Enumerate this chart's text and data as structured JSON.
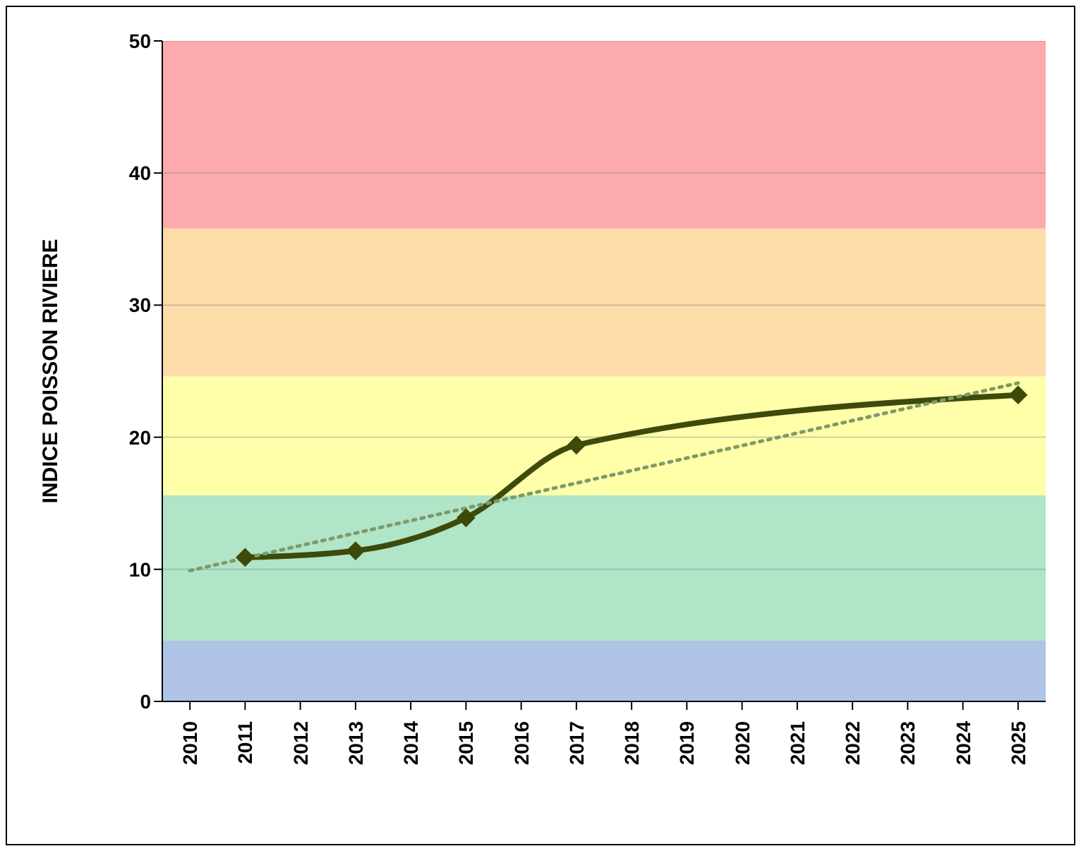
{
  "chart_data": {
    "type": "line",
    "ylabel": "INDICE POISSON RIVIERE",
    "categories": [
      "2010",
      "2011",
      "2012",
      "2013",
      "2014",
      "2015",
      "2016",
      "2017",
      "2018",
      "2019",
      "2020",
      "2021",
      "2022",
      "2023",
      "2024",
      "2025"
    ],
    "series": [
      {
        "values": [
          null,
          10.9,
          null,
          11.4,
          null,
          13.9,
          null,
          19.4,
          null,
          null,
          null,
          null,
          null,
          null,
          null,
          23.2
        ],
        "color": "#3d4a0a"
      },
      {
        "type": "line",
        "values": [
          9.9,
          null,
          null,
          null,
          null,
          null,
          null,
          null,
          null,
          null,
          null,
          null,
          null,
          null,
          null,
          24.1
        ],
        "color": "#7f9a6a",
        "line_style": "dotted",
        "marker": "none"
      }
    ],
    "ylim": [
      0,
      50
    ],
    "yticks": [
      0,
      10,
      20,
      30,
      40,
      50
    ],
    "grid": "y",
    "marker": "diamond",
    "line_style": "solid",
    "bands": [
      {
        "axis": "y",
        "from": 0,
        "to": 4.6,
        "color": "#b0c4e8"
      },
      {
        "axis": "y",
        "from": 4.6,
        "to": 15.6,
        "color": "#b0e5c8"
      },
      {
        "axis": "y",
        "from": 15.6,
        "to": 24.6,
        "color": "#ffffaa"
      },
      {
        "axis": "y",
        "from": 24.6,
        "to": 35.8,
        "color": "#fddcaa"
      },
      {
        "axis": "y",
        "from": 35.8,
        "to": 50,
        "color": "#fdaaad"
      }
    ]
  }
}
